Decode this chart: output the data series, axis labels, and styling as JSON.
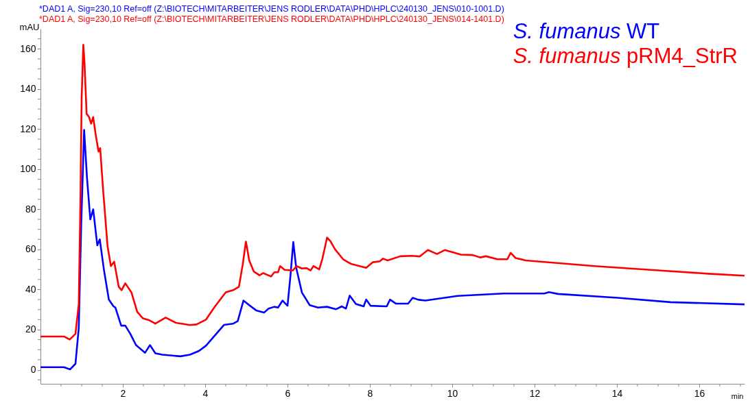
{
  "chart_data": {
    "type": "line",
    "xlabel": "min",
    "ylabel": "mAU",
    "annotations": [
      "*DAD1 A, Sig=230,10 Ref=off (Z:\\BIOTECH\\MITARBEITER\\JENS RODLER\\DATA\\PHD\\HPLC\\240130_JENS\\010-1001.D)",
      "*DAD1 A, Sig=230,10 Ref=off (Z:\\BIOTECH\\MITARBEITER\\JENS RODLER\\DATA\\PHD\\HPLC\\240130_JENS\\014-1401.D)"
    ],
    "xlim": [
      0,
      17.1
    ],
    "ylim": [
      -7,
      170
    ],
    "xticks": [
      {
        "value": 0.5,
        "label": null
      },
      {
        "value": 1,
        "label": null
      },
      {
        "value": 1.5,
        "label": null
      },
      2,
      {
        "value": 2.5,
        "label": null
      },
      {
        "value": 3,
        "label": null
      },
      {
        "value": 3.5,
        "label": null
      },
      4,
      {
        "value": 4.5,
        "label": null
      },
      {
        "value": 5,
        "label": null
      },
      {
        "value": 5.5,
        "label": null
      },
      6,
      {
        "value": 6.5,
        "label": null
      },
      {
        "value": 7,
        "label": null
      },
      {
        "value": 7.5,
        "label": null
      },
      8,
      {
        "value": 8.5,
        "label": null
      },
      {
        "value": 9,
        "label": null
      },
      {
        "value": 9.5,
        "label": null
      },
      10,
      {
        "value": 10.5,
        "label": null
      },
      {
        "value": 11,
        "label": null
      },
      {
        "value": 11.5,
        "label": null
      },
      12,
      {
        "value": 12.5,
        "label": null
      },
      {
        "value": 13,
        "label": null
      },
      {
        "value": 13.5,
        "label": null
      },
      14,
      {
        "value": 14.5,
        "label": null
      },
      {
        "value": 15,
        "label": null
      },
      {
        "value": 15.5,
        "label": null
      },
      16,
      {
        "value": 16.5,
        "label": null
      },
      {
        "value": 17,
        "label": null
      }
    ],
    "yticks": [
      {
        "value": -5,
        "label": null
      },
      0,
      {
        "value": 5,
        "label": null
      },
      {
        "value": 10,
        "label": null
      },
      {
        "value": 15,
        "label": null
      },
      20,
      {
        "value": 25,
        "label": null
      },
      {
        "value": 30,
        "label": null
      },
      {
        "value": 35,
        "label": null
      },
      40,
      {
        "value": 45,
        "label": null
      },
      {
        "value": 50,
        "label": null
      },
      {
        "value": 55,
        "label": null
      },
      60,
      {
        "value": 65,
        "label": null
      },
      {
        "value": 70,
        "label": null
      },
      {
        "value": 75,
        "label": null
      },
      80,
      {
        "value": 85,
        "label": null
      },
      {
        "value": 90,
        "label": null
      },
      {
        "value": 95,
        "label": null
      },
      100,
      {
        "value": 105,
        "label": null
      },
      {
        "value": 110,
        "label": null
      },
      {
        "value": 115,
        "label": null
      },
      120,
      {
        "value": 125,
        "label": null
      },
      {
        "value": 130,
        "label": null
      },
      {
        "value": 135,
        "label": null
      },
      140,
      {
        "value": 145,
        "label": null
      },
      {
        "value": 150,
        "label": null
      },
      {
        "value": 155,
        "label": null
      },
      160,
      {
        "value": 165,
        "label": null
      }
    ],
    "grid": false,
    "legend": "top right",
    "line_style": "solid",
    "marker": "none",
    "series": [
      {
        "name": "S. fumanus WT",
        "color": "#0000ff",
        "x": [
          0,
          0.57,
          0.72,
          0.85,
          0.93,
          0.99,
          1.06,
          1.13,
          1.21,
          1.28,
          1.38,
          1.44,
          1.54,
          1.66,
          1.77,
          1.82,
          1.96,
          2.06,
          2.18,
          2.32,
          2.54,
          2.66,
          2.79,
          2.96,
          3.4,
          3.63,
          3.85,
          4.02,
          4.46,
          4.68,
          4.79,
          4.93,
          5.07,
          5.24,
          5.43,
          5.54,
          5.68,
          5.77,
          5.88,
          6.0,
          6.07,
          6.14,
          6.21,
          6.35,
          6.54,
          6.74,
          6.96,
          7.18,
          7.32,
          7.42,
          7.51,
          7.66,
          7.85,
          7.91,
          8.02,
          8.41,
          8.49,
          8.63,
          8.93,
          9.04,
          9.18,
          9.35,
          10.13,
          11.24,
          12.24,
          12.35,
          12.57,
          14.02,
          15.3,
          17.1
        ],
        "values": [
          1.3,
          1.3,
          0.2,
          3,
          21,
          73,
          119.6,
          95.6,
          75,
          80,
          62,
          65,
          50,
          35,
          31.7,
          31,
          22,
          22,
          18,
          12.3,
          8.5,
          12.3,
          8.2,
          7.5,
          6.7,
          7.5,
          9.4,
          12,
          22.4,
          23,
          24.2,
          34.5,
          32.2,
          29.6,
          28.5,
          30.5,
          31.4,
          31,
          34.5,
          31.9,
          46.5,
          63.7,
          51,
          38.5,
          32.2,
          31,
          31.4,
          30.2,
          31.6,
          30.5,
          37,
          32.8,
          31.6,
          35,
          31.9,
          31.6,
          35,
          33,
          33,
          35.9,
          34.9,
          34.5,
          36.8,
          38,
          38,
          38.7,
          37.8,
          35.9,
          33.7,
          32.6
        ]
      },
      {
        "name": "S. fumanus pRM4_StrR",
        "color": "#ff0000",
        "x": [
          0,
          0.57,
          0.71,
          0.85,
          0.93,
          0.97,
          1.0,
          1.04,
          1.07,
          1.12,
          1.18,
          1.23,
          1.28,
          1.34,
          1.41,
          1.45,
          1.52,
          1.63,
          1.71,
          1.79,
          1.9,
          1.97,
          2.06,
          2.21,
          2.35,
          2.49,
          2.63,
          2.79,
          3.04,
          3.29,
          3.63,
          3.79,
          4.02,
          4.24,
          4.5,
          4.68,
          4.82,
          4.91,
          4.99,
          5.07,
          5.18,
          5.32,
          5.41,
          5.6,
          5.68,
          5.77,
          5.82,
          5.93,
          6.13,
          6.22,
          6.35,
          6.46,
          6.56,
          6.63,
          6.77,
          6.85,
          6.96,
          7.04,
          7.15,
          7.35,
          7.54,
          7.91,
          8.07,
          8.24,
          8.32,
          8.43,
          8.74,
          9.02,
          9.21,
          9.41,
          9.63,
          9.82,
          10.21,
          10.49,
          10.68,
          10.82,
          11.1,
          11.34,
          11.42,
          11.54,
          11.79,
          13.46,
          15.13,
          16.22,
          17.1
        ],
        "values": [
          16.6,
          16.6,
          15.1,
          17.9,
          32.8,
          84,
          135.6,
          162,
          152.8,
          127.6,
          126,
          122.7,
          126,
          117.4,
          108.8,
          110.5,
          90,
          61.4,
          51.7,
          53.9,
          41.4,
          39.7,
          43.1,
          38.5,
          28.8,
          25.6,
          24.8,
          23,
          26,
          23.4,
          22.3,
          22.6,
          25,
          31.6,
          38.6,
          39.7,
          41.4,
          52.2,
          63.9,
          54.5,
          49,
          47.1,
          48.2,
          46.5,
          48.6,
          48.6,
          51.7,
          49.8,
          49.5,
          51.7,
          50.5,
          50.7,
          49.5,
          51.7,
          50,
          55.6,
          65.9,
          64.2,
          60.2,
          55.1,
          52.8,
          50.8,
          53.6,
          54.1,
          55.4,
          54.5,
          56.6,
          56.8,
          56.5,
          59.7,
          57.7,
          59.7,
          57.4,
          57.2,
          56,
          56.6,
          55.1,
          55.1,
          58.3,
          55.7,
          54.5,
          51.7,
          49.4,
          47.9,
          46.9
        ]
      }
    ]
  }
}
